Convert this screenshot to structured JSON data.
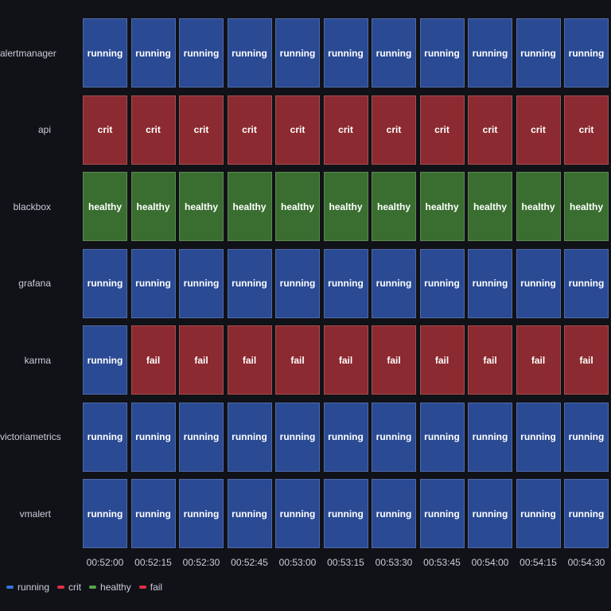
{
  "chart_data": {
    "type": "heatmap",
    "title": "",
    "xlabel": "",
    "ylabel": "",
    "x": [
      "00:52:00",
      "00:52:15",
      "00:52:30",
      "00:52:45",
      "00:53:00",
      "00:53:15",
      "00:53:30",
      "00:53:45",
      "00:54:00",
      "00:54:15",
      "00:54:30"
    ],
    "rows": [
      {
        "name": "alertmanager",
        "values": [
          "running",
          "running",
          "running",
          "running",
          "running",
          "running",
          "running",
          "running",
          "running",
          "running",
          "running"
        ]
      },
      {
        "name": "api",
        "values": [
          "crit",
          "crit",
          "crit",
          "crit",
          "crit",
          "crit",
          "crit",
          "crit",
          "crit",
          "crit",
          "crit"
        ]
      },
      {
        "name": "blackbox",
        "values": [
          "healthy",
          "healthy",
          "healthy",
          "healthy",
          "healthy",
          "healthy",
          "healthy",
          "healthy",
          "healthy",
          "healthy",
          "healthy"
        ]
      },
      {
        "name": "grafana",
        "values": [
          "running",
          "running",
          "running",
          "running",
          "running",
          "running",
          "running",
          "running",
          "running",
          "running",
          "running"
        ]
      },
      {
        "name": "karma",
        "values": [
          "running",
          "fail",
          "fail",
          "fail",
          "fail",
          "fail",
          "fail",
          "fail",
          "fail",
          "fail",
          "fail"
        ]
      },
      {
        "name": "victoriametrics",
        "values": [
          "running",
          "running",
          "running",
          "running",
          "running",
          "running",
          "running",
          "running",
          "running",
          "running",
          "running"
        ]
      },
      {
        "name": "vmalert",
        "values": [
          "running",
          "running",
          "running",
          "running",
          "running",
          "running",
          "running",
          "running",
          "running",
          "running",
          "running"
        ]
      }
    ],
    "legend": [
      {
        "label": "running",
        "color": "#3274D9"
      },
      {
        "label": "crit",
        "color": "#E02F44"
      },
      {
        "label": "healthy",
        "color": "#56A64B"
      },
      {
        "label": "fail",
        "color": "#E02F44"
      }
    ],
    "cell_colors": {
      "running": "#2a4a94",
      "crit": "#8b2a30",
      "healthy": "#3a6e30",
      "fail": "#8b2a30"
    },
    "legend_placement": "bottom-left",
    "grid": false
  }
}
